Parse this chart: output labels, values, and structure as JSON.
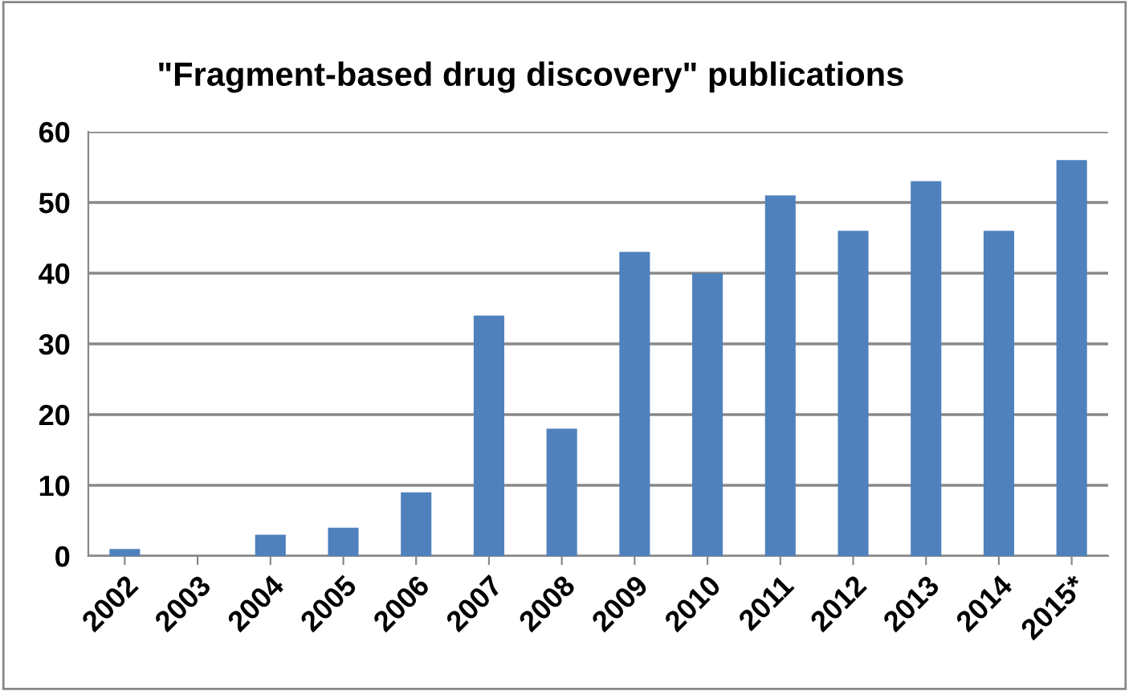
{
  "chart_data": {
    "type": "bar",
    "title": "\"Fragment-based drug discovery\" publications",
    "categories": [
      "2002",
      "2003",
      "2004",
      "2005",
      "2006",
      "2007",
      "2008",
      "2009",
      "2010",
      "2011",
      "2012",
      "2013",
      "2014",
      "2015*"
    ],
    "values": [
      1,
      0,
      3,
      4,
      9,
      34,
      18,
      43,
      40,
      51,
      46,
      53,
      46,
      56
    ],
    "color": "#4f81bd",
    "ylim": [
      0,
      60
    ],
    "yticks": [
      0,
      10,
      20,
      30,
      40,
      50,
      60
    ],
    "grid": "y",
    "legend": false
  }
}
